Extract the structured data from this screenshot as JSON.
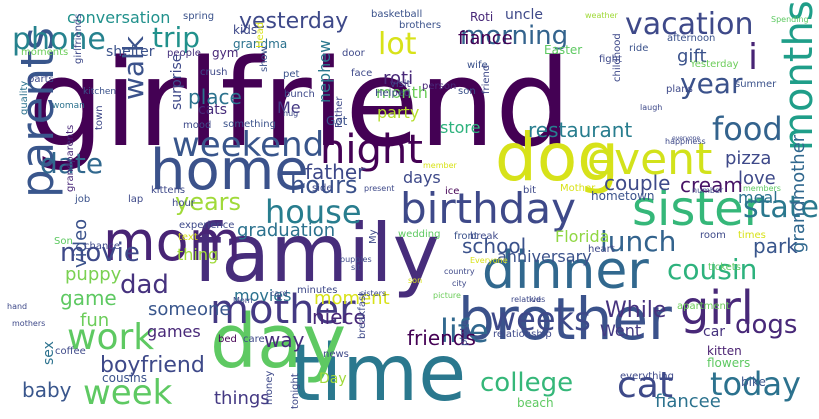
{
  "words": [
    {
      "text": "girlfriend",
      "color": "#440154"
    },
    {
      "text": "family",
      "color": "#472d7b"
    },
    {
      "text": "time",
      "color": "#2a788e"
    },
    {
      "text": "day",
      "color": "#5ec962"
    },
    {
      "text": "dog",
      "color": "#d7e219"
    },
    {
      "text": "brother",
      "color": "#3b528b"
    },
    {
      "text": "home",
      "color": "#3b528b"
    },
    {
      "text": "event",
      "color": "#d2e21b"
    },
    {
      "text": "mom",
      "color": "#482475"
    },
    {
      "text": "dinner",
      "color": "#31688e"
    },
    {
      "text": "sister",
      "color": "#35b779"
    },
    {
      "text": "birthday",
      "color": "#3e4989"
    },
    {
      "text": "parents",
      "color": "#39568c"
    },
    {
      "text": "mother",
      "color": "#443983"
    },
    {
      "text": "girl",
      "color": "#482878"
    },
    {
      "text": "night",
      "color": "#440154"
    },
    {
      "text": "months",
      "color": "#1f9e89"
    },
    {
      "text": "work",
      "color": "#5ec962"
    },
    {
      "text": "life",
      "color": "#31688e"
    },
    {
      "text": "cat",
      "color": "#3e4a89"
    },
    {
      "text": "weekend",
      "color": "#39568c"
    },
    {
      "text": "food",
      "color": "#33638d"
    },
    {
      "text": "house",
      "color": "#287d8e"
    },
    {
      "text": "week",
      "color": "#5ec962"
    },
    {
      "text": "weeks",
      "color": "#3e4989"
    },
    {
      "text": "today",
      "color": "#2c728e"
    },
    {
      "text": "phone",
      "color": "#26828e"
    },
    {
      "text": "trip",
      "color": "#21918c"
    },
    {
      "text": "lot",
      "color": "#d8e219"
    },
    {
      "text": "vacation",
      "color": "#3e4989"
    },
    {
      "text": "morning",
      "color": "#33638d"
    },
    {
      "text": "date",
      "color": "#31688e"
    },
    {
      "text": "walk",
      "color": "#3b528b"
    },
    {
      "text": "hours",
      "color": "#3b528b"
    },
    {
      "text": "years",
      "color": "#a0da39"
    },
    {
      "text": "lunch",
      "color": "#33638d"
    },
    {
      "text": "cousin",
      "color": "#2db27d"
    },
    {
      "text": "dad",
      "color": "#46327e"
    },
    {
      "text": "movie",
      "color": "#3e4989"
    },
    {
      "text": "college",
      "color": "#35b779"
    },
    {
      "text": "dogs",
      "color": "#482878"
    },
    {
      "text": "year",
      "color": "#3b528b"
    },
    {
      "text": "restaurant",
      "color": "#287d8e"
    },
    {
      "text": "state",
      "color": "#2a788e"
    },
    {
      "text": "boyfriend",
      "color": "#3e4989"
    },
    {
      "text": "friends",
      "color": "#440154"
    },
    {
      "text": "While",
      "color": "#46327e"
    },
    {
      "text": "school",
      "color": "#3b528b"
    },
    {
      "text": "yesterday",
      "color": "#3e4989"
    },
    {
      "text": "i",
      "color": "#482475"
    },
    {
      "text": "niece",
      "color": "#482878"
    },
    {
      "text": "father",
      "color": "#3e4989"
    },
    {
      "text": "way",
      "color": "#472d7b"
    },
    {
      "text": "conversation",
      "color": "#21918c"
    },
    {
      "text": "game",
      "color": "#5ec962"
    },
    {
      "text": "park",
      "color": "#39568c"
    },
    {
      "text": "graduation",
      "color": "#2c728e"
    },
    {
      "text": "gift",
      "color": "#3b528b"
    },
    {
      "text": "place",
      "color": "#2c728e"
    },
    {
      "text": "couple",
      "color": "#3e4a89"
    },
    {
      "text": "roti",
      "color": "#482878"
    },
    {
      "text": "party",
      "color": "#b5de2b"
    },
    {
      "text": "month",
      "color": "#6ccd5a"
    },
    {
      "text": "Florida",
      "color": "#90d743"
    },
    {
      "text": "store",
      "color": "#2db27d"
    },
    {
      "text": "pizza",
      "color": "#3e4989"
    },
    {
      "text": "love",
      "color": "#3e4989"
    },
    {
      "text": "cream",
      "color": "#471365"
    },
    {
      "text": "meal",
      "color": "#2c728e"
    },
    {
      "text": "fun",
      "color": "#6ccd5a"
    },
    {
      "text": "video",
      "color": "#3b528b"
    },
    {
      "text": "days",
      "color": "#3e4989"
    },
    {
      "text": "baby",
      "color": "#39568c"
    },
    {
      "text": "things",
      "color": "#443983"
    },
    {
      "text": "someone",
      "color": "#39568c"
    },
    {
      "text": "movies",
      "color": "#2c728e"
    },
    {
      "text": "puppy",
      "color": "#7ad151"
    },
    {
      "text": "moment",
      "color": "#d8e219"
    },
    {
      "text": "anniversary",
      "color": "#3b528b"
    },
    {
      "text": "Went",
      "color": "#443983"
    },
    {
      "text": "grandmother",
      "color": "#31688e"
    },
    {
      "text": "fiance",
      "color": "#440154"
    },
    {
      "text": "nephew",
      "color": "#2a788e"
    },
    {
      "text": "Me",
      "color": "#443983"
    },
    {
      "text": "fiancee",
      "color": "#2c728e"
    },
    {
      "text": "games",
      "color": "#482878"
    },
    {
      "text": "thing",
      "color": "#a0da39"
    },
    {
      "text": "uncle",
      "color": "#3e4989"
    },
    {
      "text": "Roti",
      "color": "#482878"
    },
    {
      "text": "grandma",
      "color": "#2c728e"
    },
    {
      "text": "shelter",
      "color": "#3b528b"
    },
    {
      "text": "cats",
      "color": "#472d7b"
    },
    {
      "text": "sex",
      "color": "#2c728e"
    },
    {
      "text": "kids",
      "color": "#3e4989"
    },
    {
      "text": "gym",
      "color": "#482878"
    },
    {
      "text": "surprise",
      "color": "#3e4989"
    },
    {
      "text": "Day",
      "color": "#a0da39"
    },
    {
      "text": "bike",
      "color": "#39568c"
    },
    {
      "text": "kitten",
      "color": "#481f70"
    },
    {
      "text": "flowers",
      "color": "#5ec962"
    },
    {
      "text": "car",
      "color": "#46327e"
    },
    {
      "text": "breakfast",
      "color": "#3e4989"
    },
    {
      "text": "cousins",
      "color": "#3b528b"
    },
    {
      "text": "beach",
      "color": "#5ec962"
    },
    {
      "text": "everything",
      "color": "#3e4989"
    },
    {
      "text": "moments",
      "color": "#6ccd5a"
    },
    {
      "text": "wedding",
      "color": "#5ec962"
    },
    {
      "text": "hometown",
      "color": "#3b528b"
    },
    {
      "text": "experience",
      "color": "#3e4989"
    },
    {
      "text": "grandparents",
      "color": "#482878"
    },
    {
      "text": "girlfriends",
      "color": "#3e4989"
    },
    {
      "text": "parts",
      "color": "#3e4989"
    },
    {
      "text": "kitchen",
      "color": "#3b528b"
    },
    {
      "text": "woman",
      "color": "#2c728e"
    },
    {
      "text": "quality",
      "color": "#2c728e"
    },
    {
      "text": "spring",
      "color": "#3b528b"
    },
    {
      "text": "basketball",
      "color": "#3b528b"
    },
    {
      "text": "brothers",
      "color": "#3b528b"
    },
    {
      "text": "weather",
      "color": "#a0da39"
    },
    {
      "text": "Spending",
      "color": "#5ec962"
    },
    {
      "text": "afternoon",
      "color": "#3b528b"
    },
    {
      "text": "Easter",
      "color": "#5ec962"
    },
    {
      "text": "ride",
      "color": "#3b528b"
    },
    {
      "text": "fight",
      "color": "#3e4989"
    },
    {
      "text": "wife",
      "color": "#3b528b"
    },
    {
      "text": "people",
      "color": "#46327e"
    },
    {
      "text": "door",
      "color": "#3e4989"
    },
    {
      "text": "face",
      "color": "#3e4989"
    },
    {
      "text": "Yesterday",
      "color": "#6ccd5a"
    },
    {
      "text": "childhood",
      "color": "#3e4989"
    },
    {
      "text": "plans",
      "color": "#3e4989"
    },
    {
      "text": "laugh",
      "color": "#3e4989"
    },
    {
      "text": "summer",
      "color": "#3b528b"
    },
    {
      "text": "happiness",
      "color": "#3e4989"
    },
    {
      "text": "everyone",
      "color": "#3e4989"
    },
    {
      "text": "crush",
      "color": "#3e4989"
    },
    {
      "text": "pet",
      "color": "#3b528b"
    },
    {
      "text": "visit",
      "color": "#3e4989"
    },
    {
      "text": "person",
      "color": "#482878"
    },
    {
      "text": "son",
      "color": "#3b528b"
    },
    {
      "text": "Helped",
      "color": "#3e4989"
    },
    {
      "text": "show",
      "color": "#3b528b"
    },
    {
      "text": "Head",
      "color": "#d8e219"
    },
    {
      "text": "bunch",
      "color": "#3e4989"
    },
    {
      "text": "friend",
      "color": "#3e4989"
    },
    {
      "text": "mood",
      "color": "#3e4989"
    },
    {
      "text": "something",
      "color": "#3b528b"
    },
    {
      "text": "Got",
      "color": "#3b528b"
    },
    {
      "text": "Father",
      "color": "#3e4989"
    },
    {
      "text": "hug",
      "color": "#3e4989"
    },
    {
      "text": "town",
      "color": "#3e4989"
    },
    {
      "text": "member",
      "color": "#d8e219"
    },
    {
      "text": "present",
      "color": "#3e4989"
    },
    {
      "text": "ice",
      "color": "#440154"
    },
    {
      "text": "side",
      "color": "#3e4989"
    },
    {
      "text": "bit",
      "color": "#3e4989"
    },
    {
      "text": "Mother",
      "color": "#d8e219"
    },
    {
      "text": "number",
      "color": "#3e4989"
    },
    {
      "text": "members",
      "color": "#5ec962"
    },
    {
      "text": "kittens",
      "color": "#3e4989"
    },
    {
      "text": "lap",
      "color": "#3e4989"
    },
    {
      "text": "job",
      "color": "#3b528b"
    },
    {
      "text": "hour",
      "color": "#3e4989"
    },
    {
      "text": "Son",
      "color": "#5ec962"
    },
    {
      "text": "chance",
      "color": "#3e4989"
    },
    {
      "text": "text",
      "color": "#d8e219"
    },
    {
      "text": "My",
      "color": "#3e4989"
    },
    {
      "text": "break",
      "color": "#3e4989"
    },
    {
      "text": "heart",
      "color": "#3e4989"
    },
    {
      "text": "room",
      "color": "#3e4989"
    },
    {
      "text": "times",
      "color": "#d8e219"
    },
    {
      "text": "front",
      "color": "#3b528b"
    },
    {
      "text": "Everyone",
      "color": "#d8e219"
    },
    {
      "text": "puppies",
      "color": "#3e4989"
    },
    {
      "text": "sit",
      "color": "#3e4989"
    },
    {
      "text": "country",
      "color": "#3e4989"
    },
    {
      "text": "city",
      "color": "#3e4989"
    },
    {
      "text": "tickets",
      "color": "#5ec962"
    },
    {
      "text": "apartment",
      "color": "#6ccd5a"
    },
    {
      "text": "son",
      "color": "#d8e219"
    },
    {
      "text": "relatives",
      "color": "#3e4989"
    },
    {
      "text": "kid",
      "color": "#3e4989"
    },
    {
      "text": "sisters",
      "color": "#3e4989"
    },
    {
      "text": "picture",
      "color": "#6ccd5a"
    },
    {
      "text": "plate",
      "color": "#3e4989"
    },
    {
      "text": "relationship",
      "color": "#3e4989"
    },
    {
      "text": "minutes",
      "color": "#3e4989"
    },
    {
      "text": "card",
      "color": "#3e4989"
    },
    {
      "text": "Mom",
      "color": "#3e4989"
    },
    {
      "text": "care",
      "color": "#3e4989"
    },
    {
      "text": "bed",
      "color": "#440154"
    },
    {
      "text": "coffee",
      "color": "#3e4989"
    },
    {
      "text": "mothers",
      "color": "#3e4989"
    },
    {
      "text": "hand",
      "color": "#3e4989"
    },
    {
      "text": "news",
      "color": "#3e4989"
    },
    {
      "text": "tonight",
      "color": "#3e4989"
    },
    {
      "text": "money",
      "color": "#3e4989"
    }
  ]
}
